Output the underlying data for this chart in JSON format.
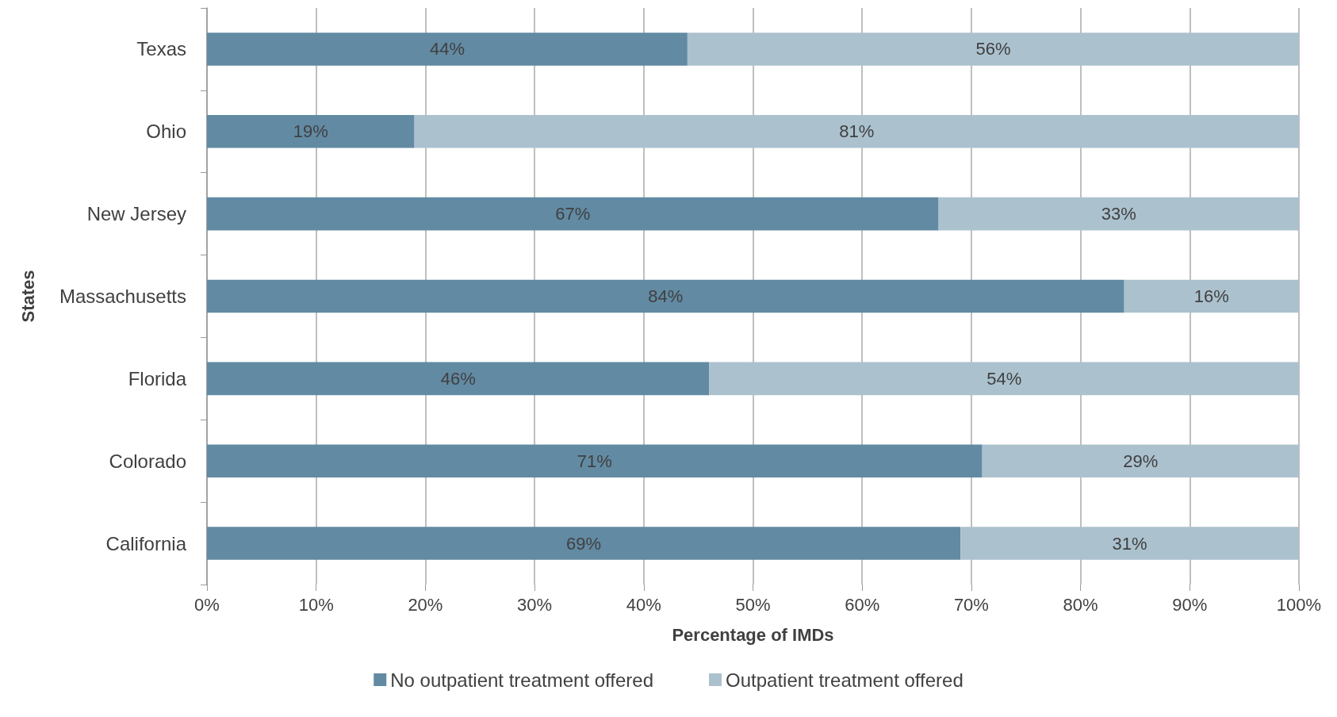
{
  "chart_data": {
    "type": "bar",
    "orientation": "horizontal",
    "stacked": true,
    "xlabel": "Percentage of IMDs",
    "ylabel": "States",
    "categories": [
      "Texas",
      "Ohio",
      "New Jersey",
      "Massachusetts",
      "Florida",
      "Colorado",
      "California"
    ],
    "series": [
      {
        "name": "No outpatient treatment offered",
        "color": "#628aa3",
        "values": [
          44,
          19,
          67,
          84,
          46,
          71,
          69
        ],
        "value_labels": [
          "44%",
          "19%",
          "67%",
          "84%",
          "46%",
          "71%",
          "69%"
        ]
      },
      {
        "name": "Outpatient treatment offered",
        "color": "#abc1ce",
        "values": [
          56,
          81,
          33,
          16,
          54,
          29,
          31
        ],
        "value_labels": [
          "56%",
          "81%",
          "33%",
          "16%",
          "54%",
          "29%",
          "31%"
        ]
      }
    ],
    "xlim": [
      0,
      100
    ],
    "xticks": [
      {
        "value": 0,
        "label": "0%"
      },
      {
        "value": 10,
        "label": "10%"
      },
      {
        "value": 20,
        "label": "20%"
      },
      {
        "value": 30,
        "label": "30%"
      },
      {
        "value": 40,
        "label": "40%"
      },
      {
        "value": 50,
        "label": "50%"
      },
      {
        "value": 60,
        "label": "60%"
      },
      {
        "value": 70,
        "label": "70%"
      },
      {
        "value": 80,
        "label": "80%"
      },
      {
        "value": 90,
        "label": "90%"
      },
      {
        "value": 100,
        "label": "100%"
      }
    ],
    "grid": "x",
    "legend": "bottom"
  }
}
